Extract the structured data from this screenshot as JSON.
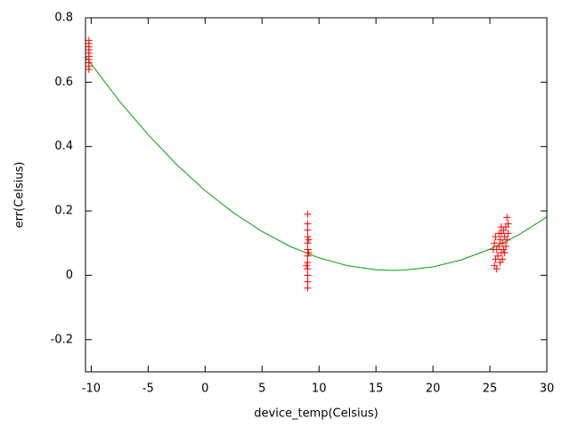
{
  "chart_data": {
    "type": "scatter",
    "xlabel": "device_temp(Celsius)",
    "ylabel": "err(Celsius)",
    "xlim": [
      -10.5,
      30
    ],
    "xticks": [
      -10,
      -5,
      0,
      5,
      10,
      15,
      20,
      25,
      30
    ],
    "ylim": [
      -0.3,
      0.8
    ],
    "yticks": [
      -0.2,
      0,
      0.2,
      0.4,
      0.6,
      0.8
    ],
    "series": [
      {
        "type": "scatter",
        "color": "#ff0000",
        "x": [
          -10.2,
          -10.2,
          -10.2,
          -10.2,
          -10.2,
          -10.2,
          -10.2,
          -10.2,
          -10.2,
          -10.2,
          9,
          9,
          9,
          9,
          9,
          9,
          9,
          9,
          9,
          9,
          9,
          9,
          8.9,
          9.1,
          9.1,
          25.4,
          25.5,
          25.6,
          25.4,
          25.5,
          25.7,
          25.8,
          25.9,
          26.0,
          26.0,
          26.1,
          26.2,
          26.2,
          26.3,
          26.4,
          26.4,
          26.5,
          26.5,
          26.6,
          25.6,
          25.9,
          26.1,
          25.3,
          26.3,
          26.6,
          25.8,
          26.0
        ],
        "values": [
          0.64,
          0.65,
          0.66,
          0.67,
          0.68,
          0.69,
          0.7,
          0.71,
          0.72,
          0.73,
          -0.04,
          -0.02,
          0,
          0.02,
          0.04,
          0.06,
          0.08,
          0.1,
          0.12,
          0.14,
          0.16,
          0.19,
          0.03,
          0.07,
          0.11,
          0.03,
          0.05,
          0.08,
          0.1,
          0.12,
          0.06,
          0.09,
          0.11,
          0.07,
          0.13,
          0.1,
          0.08,
          0.14,
          0.12,
          0.09,
          0.15,
          0.11,
          0.18,
          0.13,
          0.02,
          0.04,
          0.05,
          0.08,
          0.07,
          0.16,
          0.13,
          0.15
        ]
      },
      {
        "type": "line",
        "color": "#00a000",
        "x": [
          -10.5,
          -7.5,
          -5,
          -2.5,
          0,
          2.5,
          5,
          7.5,
          10,
          12.5,
          15,
          16.5,
          17.5,
          20,
          22.5,
          25,
          27.5,
          30
        ],
        "values": [
          0.68,
          0.54,
          0.437,
          0.344,
          0.263,
          0.194,
          0.136,
          0.089,
          0.054,
          0.03,
          0.017,
          0.015,
          0.016,
          0.026,
          0.048,
          0.081,
          0.125,
          0.181
        ]
      }
    ]
  }
}
